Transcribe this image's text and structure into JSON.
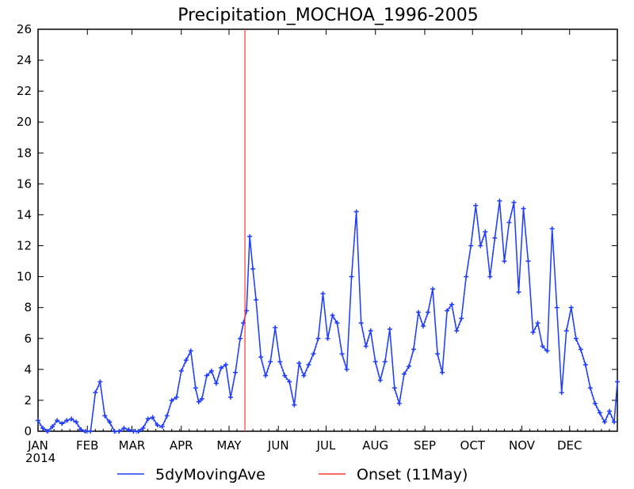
{
  "chart_data": {
    "type": "line",
    "title": "Precipitation_MOCHOA_1996-2005",
    "xlabel": "",
    "ylabel": "",
    "ylim": [
      0,
      26
    ],
    "yticks": [
      "0",
      "2",
      "4",
      "6",
      "8",
      "10",
      "12",
      "14",
      "16",
      "18",
      "20",
      "22",
      "24",
      "26"
    ],
    "xlim": [
      "2014-01-01",
      "2014-12-31"
    ],
    "month_labels": [
      "JAN",
      "FEB",
      "MAR",
      "APR",
      "MAY",
      "JUN",
      "JUL",
      "AUG",
      "SEP",
      "OCT",
      "NOV",
      "DEC"
    ],
    "year_label": "2014",
    "grid": false,
    "legend_position": "bottom",
    "series": [
      {
        "name": "5dyMovingAve",
        "color": "#1f3cff",
        "style": "solid line with + markers",
        "x": [
          "2014-01-01",
          "2014-01-04",
          "2014-01-07",
          "2014-01-10",
          "2014-01-13",
          "2014-01-16",
          "2014-01-19",
          "2014-01-22",
          "2014-01-25",
          "2014-01-28",
          "2014-01-31",
          "2014-02-03",
          "2014-02-06",
          "2014-02-09",
          "2014-02-12",
          "2014-02-15",
          "2014-02-18",
          "2014-02-21",
          "2014-02-24",
          "2014-02-27",
          "2014-03-02",
          "2014-03-05",
          "2014-03-08",
          "2014-03-11",
          "2014-03-14",
          "2014-03-17",
          "2014-03-20",
          "2014-03-23",
          "2014-03-26",
          "2014-03-29",
          "2014-04-01",
          "2014-04-04",
          "2014-04-07",
          "2014-04-10",
          "2014-04-12",
          "2014-04-14",
          "2014-04-17",
          "2014-04-20",
          "2014-04-23",
          "2014-04-26",
          "2014-04-29",
          "2014-05-02",
          "2014-05-05",
          "2014-05-08",
          "2014-05-10",
          "2014-05-12",
          "2014-05-14",
          "2014-05-16",
          "2014-05-18",
          "2014-05-21",
          "2014-05-24",
          "2014-05-27",
          "2014-05-30",
          "2014-06-02",
          "2014-06-05",
          "2014-06-08",
          "2014-06-11",
          "2014-06-14",
          "2014-06-17",
          "2014-06-20",
          "2014-06-23",
          "2014-06-26",
          "2014-06-29",
          "2014-07-02",
          "2014-07-05",
          "2014-07-08",
          "2014-07-11",
          "2014-07-14",
          "2014-07-17",
          "2014-07-20",
          "2014-07-23",
          "2014-07-26",
          "2014-07-29",
          "2014-08-01",
          "2014-08-04",
          "2014-08-07",
          "2014-08-10",
          "2014-08-13",
          "2014-08-16",
          "2014-08-19",
          "2014-08-22",
          "2014-08-25",
          "2014-08-28",
          "2014-08-31",
          "2014-09-03",
          "2014-09-06",
          "2014-09-09",
          "2014-09-12",
          "2014-09-15",
          "2014-09-18",
          "2014-09-21",
          "2014-09-24",
          "2014-09-27",
          "2014-09-30",
          "2014-10-03",
          "2014-10-06",
          "2014-10-09",
          "2014-10-12",
          "2014-10-15",
          "2014-10-18",
          "2014-10-21",
          "2014-10-24",
          "2014-10-27",
          "2014-10-30",
          "2014-11-02",
          "2014-11-05",
          "2014-11-08",
          "2014-11-11",
          "2014-11-14",
          "2014-11-17",
          "2014-11-20",
          "2014-11-23",
          "2014-11-26",
          "2014-11-29",
          "2014-12-02",
          "2014-12-05",
          "2014-12-08",
          "2014-12-11",
          "2014-12-14",
          "2014-12-17",
          "2014-12-20",
          "2014-12-23",
          "2014-12-26",
          "2014-12-29",
          "2014-12-31"
        ],
        "values": [
          0.7,
          0.2,
          0.0,
          0.3,
          0.7,
          0.5,
          0.7,
          0.8,
          0.6,
          0.1,
          0.0,
          0.0,
          2.5,
          3.2,
          1.0,
          0.6,
          0.0,
          0.0,
          0.2,
          0.1,
          0.0,
          0.0,
          0.2,
          0.8,
          0.9,
          0.4,
          0.3,
          1.0,
          2.0,
          2.2,
          3.9,
          4.6,
          5.2,
          2.8,
          1.9,
          2.1,
          3.6,
          3.9,
          3.1,
          4.1,
          4.3,
          2.2,
          3.8,
          6.0,
          7.0,
          7.8,
          12.6,
          10.5,
          8.5,
          4.8,
          3.6,
          4.5,
          6.7,
          4.5,
          3.6,
          3.2,
          1.7,
          4.4,
          3.6,
          4.3,
          5.0,
          6.0,
          8.9,
          6.0,
          7.5,
          7.0,
          5.0,
          4.0,
          10.0,
          14.2,
          7.0,
          5.5,
          6.5,
          4.5,
          3.3,
          4.5,
          6.6,
          2.8,
          1.8,
          3.7,
          4.2,
          5.3,
          7.7,
          6.8,
          7.7,
          9.2,
          5.0,
          3.8,
          7.8,
          8.2,
          6.5,
          7.3,
          10.0,
          12.0,
          14.6,
          12.0,
          12.9,
          10.0,
          12.5,
          14.9,
          11.0,
          13.5,
          14.8,
          9.0,
          14.4,
          11.0,
          6.4,
          7.0,
          5.5,
          5.2,
          13.1,
          8.0,
          2.5,
          6.5,
          8.0,
          6.0,
          5.3,
          4.3,
          2.8,
          1.8,
          1.2,
          0.6,
          1.3,
          0.6,
          3.2
        ]
      },
      {
        "name": "Onset (11May)",
        "color": "#ff3b30",
        "type": "vline",
        "x": "2014-05-11"
      }
    ]
  }
}
